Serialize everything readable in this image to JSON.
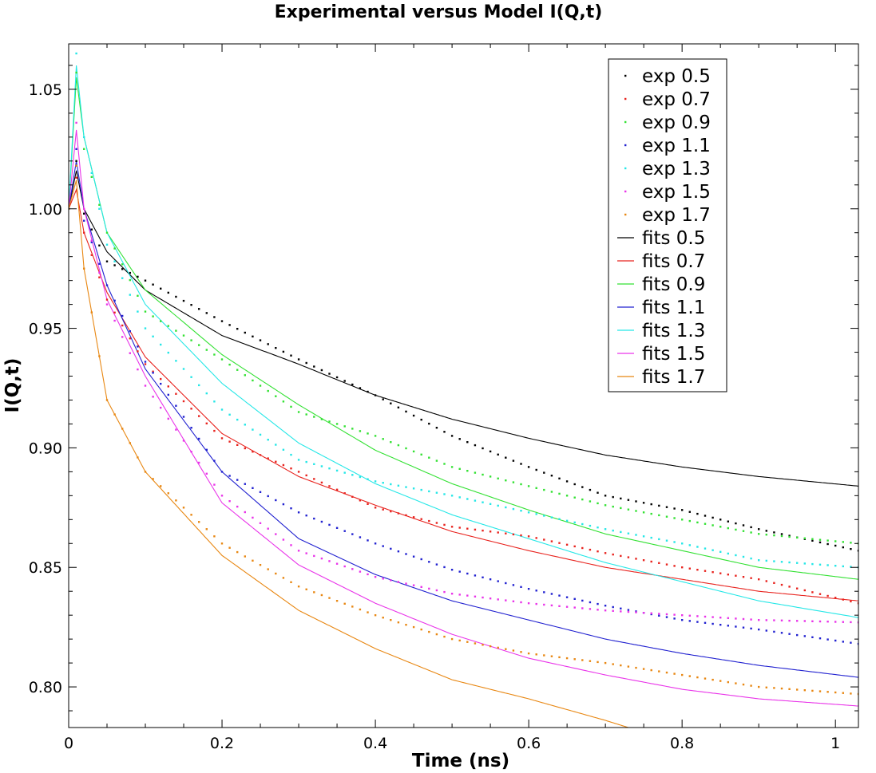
{
  "chart_data": {
    "type": "line",
    "title": "Experimental versus Model I(Q,t)",
    "xlabel": "Time (ns)",
    "ylabel": "I(Q,t)",
    "xlim": [
      0,
      1.03
    ],
    "ylim": [
      0.783,
      1.069
    ],
    "x_ticks": [
      0,
      0.2,
      0.4,
      0.6,
      0.8,
      1
    ],
    "x_tick_labels": [
      "0",
      "0.2",
      "0.4",
      "0.6",
      "0.8",
      "1"
    ],
    "y_ticks": [
      0.8,
      0.85,
      0.9,
      0.95,
      1.0,
      1.05
    ],
    "y_tick_labels": [
      "0.80",
      "0.85",
      "0.90",
      "0.95",
      "1.00",
      "1.05"
    ],
    "grid": false,
    "legend_position": "top-right",
    "fits": [
      {
        "name": "fits 0.5",
        "color": "#000000",
        "q": 0.5,
        "peak": 1.016,
        "points": [
          [
            0.02,
            1.0
          ],
          [
            0.05,
            0.982
          ],
          [
            0.1,
            0.966
          ],
          [
            0.2,
            0.947
          ],
          [
            0.3,
            0.935
          ],
          [
            0.4,
            0.922
          ],
          [
            0.5,
            0.912
          ],
          [
            0.6,
            0.904
          ],
          [
            0.7,
            0.897
          ],
          [
            0.8,
            0.892
          ],
          [
            0.9,
            0.888
          ],
          [
            1.03,
            0.884
          ]
        ]
      },
      {
        "name": "fits 0.7",
        "color": "#e8231e",
        "q": 0.7,
        "peak": 1.008,
        "points": [
          [
            0.02,
            0.99
          ],
          [
            0.05,
            0.965
          ],
          [
            0.1,
            0.938
          ],
          [
            0.2,
            0.906
          ],
          [
            0.3,
            0.888
          ],
          [
            0.4,
            0.876
          ],
          [
            0.5,
            0.865
          ],
          [
            0.6,
            0.857
          ],
          [
            0.7,
            0.85
          ],
          [
            0.8,
            0.845
          ],
          [
            0.9,
            0.84
          ],
          [
            1.03,
            0.836
          ]
        ]
      },
      {
        "name": "fits 0.9",
        "color": "#33e133",
        "q": 0.9,
        "peak": 1.055,
        "points": [
          [
            0.02,
            1.03
          ],
          [
            0.05,
            0.99
          ],
          [
            0.1,
            0.966
          ],
          [
            0.2,
            0.939
          ],
          [
            0.3,
            0.918
          ],
          [
            0.4,
            0.899
          ],
          [
            0.5,
            0.885
          ],
          [
            0.6,
            0.874
          ],
          [
            0.7,
            0.864
          ],
          [
            0.8,
            0.857
          ],
          [
            0.9,
            0.85
          ],
          [
            1.03,
            0.845
          ]
        ]
      },
      {
        "name": "fits 1.1",
        "color": "#2121d0",
        "q": 1.1,
        "peak": 1.02,
        "points": [
          [
            0.02,
            1.0
          ],
          [
            0.05,
            0.968
          ],
          [
            0.1,
            0.933
          ],
          [
            0.2,
            0.89
          ],
          [
            0.3,
            0.862
          ],
          [
            0.4,
            0.847
          ],
          [
            0.5,
            0.836
          ],
          [
            0.6,
            0.828
          ],
          [
            0.7,
            0.82
          ],
          [
            0.8,
            0.814
          ],
          [
            0.9,
            0.809
          ],
          [
            1.03,
            0.804
          ]
        ]
      },
      {
        "name": "fits 1.3",
        "color": "#25e7e7",
        "q": 1.3,
        "peak": 1.06,
        "points": [
          [
            0.02,
            1.03
          ],
          [
            0.05,
            0.99
          ],
          [
            0.1,
            0.96
          ],
          [
            0.2,
            0.927
          ],
          [
            0.3,
            0.902
          ],
          [
            0.4,
            0.885
          ],
          [
            0.5,
            0.872
          ],
          [
            0.6,
            0.862
          ],
          [
            0.7,
            0.852
          ],
          [
            0.8,
            0.844
          ],
          [
            0.9,
            0.836
          ],
          [
            1.03,
            0.829
          ]
        ]
      },
      {
        "name": "fits 1.5",
        "color": "#e934e9",
        "q": 1.5,
        "peak": 1.033,
        "points": [
          [
            0.02,
            1.0
          ],
          [
            0.05,
            0.962
          ],
          [
            0.1,
            0.93
          ],
          [
            0.2,
            0.877
          ],
          [
            0.3,
            0.851
          ],
          [
            0.4,
            0.835
          ],
          [
            0.5,
            0.822
          ],
          [
            0.6,
            0.812
          ],
          [
            0.7,
            0.805
          ],
          [
            0.8,
            0.799
          ],
          [
            0.9,
            0.795
          ],
          [
            1.03,
            0.792
          ]
        ]
      },
      {
        "name": "fits 1.7",
        "color": "#e88712",
        "q": 1.7,
        "peak": 1.012,
        "points": [
          [
            0.02,
            0.975
          ],
          [
            0.05,
            0.92
          ],
          [
            0.1,
            0.89
          ],
          [
            0.2,
            0.855
          ],
          [
            0.3,
            0.832
          ],
          [
            0.4,
            0.816
          ],
          [
            0.5,
            0.803
          ],
          [
            0.6,
            0.795
          ],
          [
            0.7,
            0.786
          ],
          [
            0.73,
            0.783
          ]
        ]
      }
    ],
    "experiments": [
      {
        "name": "exp 0.5",
        "color": "#000000",
        "q": 0.5,
        "peak": 1.02,
        "points": [
          [
            0.02,
            0.998
          ],
          [
            0.05,
            0.978
          ],
          [
            0.1,
            0.97
          ],
          [
            0.2,
            0.953
          ],
          [
            0.3,
            0.937
          ],
          [
            0.4,
            0.922
          ],
          [
            0.5,
            0.905
          ],
          [
            0.6,
            0.892
          ],
          [
            0.7,
            0.88
          ],
          [
            0.8,
            0.874
          ],
          [
            0.9,
            0.866
          ],
          [
            1.03,
            0.857
          ]
        ]
      },
      {
        "name": "exp 0.7",
        "color": "#e8231e",
        "q": 0.7,
        "peak": 1.013,
        "points": [
          [
            0.02,
            0.99
          ],
          [
            0.05,
            0.962
          ],
          [
            0.1,
            0.935
          ],
          [
            0.2,
            0.904
          ],
          [
            0.3,
            0.89
          ],
          [
            0.4,
            0.875
          ],
          [
            0.5,
            0.867
          ],
          [
            0.6,
            0.863
          ],
          [
            0.7,
            0.856
          ],
          [
            0.8,
            0.85
          ],
          [
            0.9,
            0.845
          ],
          [
            1.03,
            0.835
          ]
        ]
      },
      {
        "name": "exp 0.9",
        "color": "#33e133",
        "q": 0.9,
        "peak": 1.057,
        "points": [
          [
            0.02,
            1.025
          ],
          [
            0.05,
            0.99
          ],
          [
            0.1,
            0.957
          ],
          [
            0.2,
            0.937
          ],
          [
            0.3,
            0.915
          ],
          [
            0.4,
            0.905
          ],
          [
            0.5,
            0.892
          ],
          [
            0.6,
            0.884
          ],
          [
            0.7,
            0.876
          ],
          [
            0.8,
            0.87
          ],
          [
            0.9,
            0.864
          ],
          [
            1.03,
            0.86
          ]
        ]
      },
      {
        "name": "exp 1.1",
        "color": "#2121d0",
        "q": 1.1,
        "peak": 1.025,
        "points": [
          [
            0.02,
            0.995
          ],
          [
            0.05,
            0.968
          ],
          [
            0.1,
            0.936
          ],
          [
            0.2,
            0.89
          ],
          [
            0.3,
            0.873
          ],
          [
            0.4,
            0.86
          ],
          [
            0.5,
            0.849
          ],
          [
            0.6,
            0.841
          ],
          [
            0.7,
            0.834
          ],
          [
            0.8,
            0.828
          ],
          [
            0.9,
            0.824
          ],
          [
            1.03,
            0.818
          ]
        ]
      },
      {
        "name": "exp 1.3",
        "color": "#25e7e7",
        "q": 1.3,
        "peak": 1.065,
        "points": [
          [
            0.02,
            1.03
          ],
          [
            0.05,
            0.985
          ],
          [
            0.1,
            0.95
          ],
          [
            0.2,
            0.916
          ],
          [
            0.3,
            0.895
          ],
          [
            0.4,
            0.886
          ],
          [
            0.5,
            0.88
          ],
          [
            0.6,
            0.873
          ],
          [
            0.7,
            0.866
          ],
          [
            0.8,
            0.86
          ],
          [
            0.9,
            0.853
          ],
          [
            1.03,
            0.85
          ]
        ]
      },
      {
        "name": "exp 1.5",
        "color": "#e934e9",
        "q": 1.5,
        "peak": 1.036,
        "points": [
          [
            0.02,
            1.0
          ],
          [
            0.05,
            0.96
          ],
          [
            0.1,
            0.926
          ],
          [
            0.2,
            0.88
          ],
          [
            0.3,
            0.857
          ],
          [
            0.4,
            0.846
          ],
          [
            0.5,
            0.839
          ],
          [
            0.6,
            0.835
          ],
          [
            0.7,
            0.832
          ],
          [
            0.8,
            0.83
          ],
          [
            0.9,
            0.828
          ],
          [
            1.03,
            0.827
          ]
        ]
      },
      {
        "name": "exp 1.7",
        "color": "#e88712",
        "q": 1.7,
        "peak": 1.018,
        "points": [
          [
            0.02,
            0.975
          ],
          [
            0.05,
            0.92
          ],
          [
            0.1,
            0.89
          ],
          [
            0.2,
            0.86
          ],
          [
            0.3,
            0.842
          ],
          [
            0.4,
            0.83
          ],
          [
            0.5,
            0.82
          ],
          [
            0.6,
            0.814
          ],
          [
            0.7,
            0.81
          ],
          [
            0.8,
            0.805
          ],
          [
            0.9,
            0.8
          ],
          [
            1.03,
            0.797
          ]
        ]
      }
    ]
  }
}
